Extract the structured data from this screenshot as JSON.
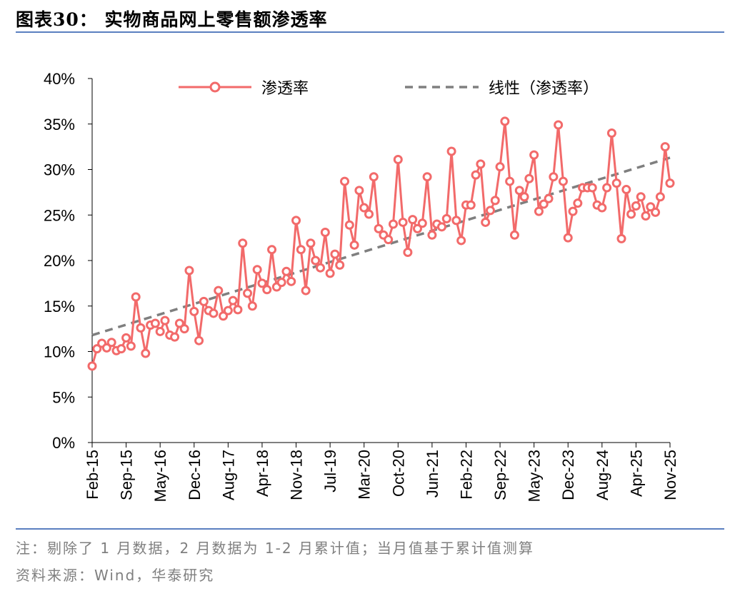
{
  "header": {
    "title": "图表30：  实物商品网上零售额渗透率"
  },
  "footer": {
    "note": "注：剔除了 1 月数据，2 月数据为 1-2 月累计值；当月值基于累计值测算",
    "source": "资料来源：Wind，华泰研究"
  },
  "colors": {
    "series": "#f26a6a",
    "trend": "#7f7f7f",
    "rule": "#5a7fc0"
  },
  "chart_data": {
    "type": "line",
    "title": "实物商品网上零售额渗透率",
    "ylim": [
      0,
      40
    ],
    "yticks": [
      "0%",
      "5%",
      "10%",
      "15%",
      "20%",
      "25%",
      "30%",
      "35%",
      "40%"
    ],
    "x_tick_labels": [
      "Feb-15",
      "Sep-15",
      "May-16",
      "Dec-16",
      "Aug-17",
      "Apr-18",
      "Nov-18",
      "Jul-19",
      "Mar-20",
      "Oct-20",
      "Jun-21",
      "Feb-22",
      "Sep-22",
      "May-23",
      "Dec-23",
      "Aug-24",
      "Apr-25",
      "Nov-25"
    ],
    "legend": {
      "position": "top",
      "series_label": "渗透率",
      "trend_label": "线性（渗透率）"
    },
    "series": [
      {
        "name": "渗透率",
        "values": [
          8.4,
          10.3,
          10.9,
          10.4,
          11.0,
          10.1,
          10.3,
          11.5,
          10.6,
          16.0,
          12.6,
          9.8,
          12.9,
          13.1,
          12.2,
          13.4,
          11.8,
          11.6,
          13.1,
          12.5,
          18.9,
          14.4,
          11.2,
          15.5,
          14.5,
          14.2,
          16.7,
          13.9,
          14.5,
          15.6,
          14.6,
          21.9,
          16.4,
          15.0,
          19.0,
          17.5,
          16.8,
          21.2,
          17.1,
          17.6,
          18.8,
          17.7,
          24.4,
          21.2,
          16.7,
          21.9,
          20.0,
          19.2,
          23.1,
          18.6,
          20.7,
          19.5,
          28.7,
          23.9,
          21.7,
          27.7,
          25.8,
          25.1,
          29.2,
          23.5,
          22.8,
          22.3,
          24.0,
          31.1,
          24.2,
          20.9,
          24.5,
          23.5,
          24.1,
          29.2,
          22.8,
          24.0,
          23.7,
          24.6,
          32.0,
          24.4,
          22.2,
          26.1,
          26.1,
          29.4,
          30.6,
          24.2,
          25.5,
          26.6,
          30.3,
          35.3,
          28.7,
          22.8,
          27.7,
          27.0,
          29.0,
          31.6,
          25.4,
          26.2,
          26.8,
          29.2,
          34.9,
          28.7,
          22.5,
          25.4,
          26.3,
          28.0,
          28.0,
          28.0,
          26.1,
          25.8,
          28.0,
          34.0,
          28.5,
          22.4,
          27.8,
          25.1,
          26.0,
          27.0,
          24.9,
          25.9,
          25.3,
          27.0,
          32.5,
          28.5
        ]
      }
    ],
    "trend": {
      "name": "线性（渗透率）",
      "start": 11.8,
      "end": 31.3
    }
  }
}
